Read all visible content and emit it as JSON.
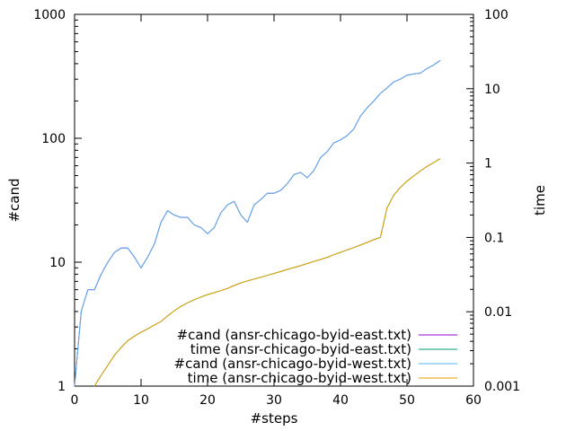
{
  "chart_data": {
    "type": "line",
    "xlabel": "#steps",
    "ylabel": "#cand",
    "y2label": "time",
    "xlim": [
      0,
      60
    ],
    "ylim": [
      1,
      1000
    ],
    "y2lim": [
      0.001,
      100
    ],
    "yscale": "log",
    "y2scale": "log",
    "grid": false,
    "legend_position": "bottom-right",
    "x_ticks": [
      "0",
      "10",
      "20",
      "30",
      "40",
      "50",
      "60"
    ],
    "y_ticks": [
      "1",
      "10",
      "100",
      "1000"
    ],
    "y2_ticks": [
      "0.001",
      "0.01",
      "0.1",
      "1",
      "10",
      "100"
    ],
    "series": [
      {
        "name": "#cand (ansr-chicago-byid-east.txt)",
        "axis": "y",
        "color": "#9400d3",
        "x": [
          0,
          1,
          2,
          3,
          4,
          5,
          6,
          7,
          8,
          9,
          10,
          11,
          12,
          13,
          14,
          15,
          16,
          17,
          18,
          19,
          20,
          21,
          22,
          23,
          24,
          25,
          26,
          27,
          28,
          29,
          30,
          31,
          32,
          33,
          34,
          35,
          36,
          37,
          38,
          39,
          40,
          41,
          42,
          43,
          44,
          45,
          46,
          47,
          48,
          49,
          50,
          51,
          52,
          53,
          54,
          55
        ],
        "values": [
          1,
          4,
          6,
          6,
          8,
          10,
          12,
          13,
          13,
          11,
          9,
          11,
          14,
          21,
          26,
          24,
          23,
          23,
          20,
          19,
          17,
          19,
          25,
          29,
          31,
          24,
          21,
          29,
          32,
          36,
          36,
          38,
          43,
          51,
          53,
          48,
          55,
          70,
          78,
          92,
          97,
          105,
          119,
          151,
          176,
          200,
          230,
          255,
          285,
          300,
          323,
          330,
          335,
          365,
          390,
          425
        ]
      },
      {
        "name": "time (ansr-chicago-byid-east.txt)",
        "axis": "y2",
        "color": "#009e73",
        "x": [
          3,
          4,
          5,
          6,
          7,
          8,
          9,
          10,
          11,
          12,
          13,
          14,
          15,
          16,
          17,
          18,
          19,
          20,
          21,
          22,
          23,
          24,
          25,
          26,
          27,
          28,
          29,
          30,
          31,
          32,
          33,
          34,
          35,
          36,
          37,
          38,
          39,
          40,
          41,
          42,
          43,
          44,
          45,
          46,
          47,
          48,
          49,
          50,
          51,
          52,
          53,
          54,
          55
        ],
        "values": [
          0.001,
          0.0014,
          0.0019,
          0.0026,
          0.0033,
          0.0041,
          0.0047,
          0.0053,
          0.0059,
          0.0066,
          0.0074,
          0.0088,
          0.0103,
          0.0118,
          0.0132,
          0.0145,
          0.0158,
          0.017,
          0.0181,
          0.0192,
          0.0206,
          0.0225,
          0.0244,
          0.026,
          0.0275,
          0.029,
          0.0308,
          0.0328,
          0.0348,
          0.0372,
          0.0393,
          0.0417,
          0.0445,
          0.0475,
          0.0505,
          0.054,
          0.0585,
          0.063,
          0.068,
          0.073,
          0.079,
          0.0855,
          0.093,
          0.1,
          0.25,
          0.37,
          0.47,
          0.57,
          0.67,
          0.78,
          0.9,
          1.01,
          1.15
        ]
      },
      {
        "name": "#cand (ansr-chicago-byid-west.txt)",
        "axis": "y",
        "color": "#56b4e9",
        "x": [
          0,
          1,
          2,
          3,
          4,
          5,
          6,
          7,
          8,
          9,
          10,
          11,
          12,
          13,
          14,
          15,
          16,
          17,
          18,
          19,
          20,
          21,
          22,
          23,
          24,
          25,
          26,
          27,
          28,
          29,
          30,
          31,
          32,
          33,
          34,
          35,
          36,
          37,
          38,
          39,
          40,
          41,
          42,
          43,
          44,
          45,
          46,
          47,
          48,
          49,
          50,
          51,
          52,
          53,
          54,
          55
        ],
        "values": [
          1,
          4,
          6,
          6,
          8,
          10,
          12,
          13,
          13,
          11,
          9,
          11,
          14,
          21,
          26,
          24,
          23,
          23,
          20,
          19,
          17,
          19,
          25,
          29,
          31,
          24,
          21,
          29,
          32,
          36,
          36,
          38,
          43,
          51,
          53,
          48,
          55,
          70,
          78,
          92,
          97,
          105,
          119,
          151,
          176,
          200,
          230,
          255,
          285,
          300,
          323,
          330,
          335,
          365,
          390,
          425
        ]
      },
      {
        "name": "time (ansr-chicago-byid-west.txt)",
        "axis": "y2",
        "color": "#e69f00",
        "x": [
          3,
          4,
          5,
          6,
          7,
          8,
          9,
          10,
          11,
          12,
          13,
          14,
          15,
          16,
          17,
          18,
          19,
          20,
          21,
          22,
          23,
          24,
          25,
          26,
          27,
          28,
          29,
          30,
          31,
          32,
          33,
          34,
          35,
          36,
          37,
          38,
          39,
          40,
          41,
          42,
          43,
          44,
          45,
          46,
          47,
          48,
          49,
          50,
          51,
          52,
          53,
          54,
          55
        ],
        "values": [
          0.001,
          0.0014,
          0.0019,
          0.0026,
          0.0033,
          0.0041,
          0.0047,
          0.0053,
          0.0059,
          0.0066,
          0.0074,
          0.0088,
          0.0103,
          0.0118,
          0.0132,
          0.0145,
          0.0158,
          0.017,
          0.0181,
          0.0192,
          0.0206,
          0.0225,
          0.0244,
          0.026,
          0.0275,
          0.029,
          0.0308,
          0.0328,
          0.0348,
          0.0372,
          0.0393,
          0.0417,
          0.0445,
          0.0475,
          0.0505,
          0.054,
          0.0585,
          0.063,
          0.068,
          0.073,
          0.079,
          0.0855,
          0.093,
          0.1,
          0.25,
          0.37,
          0.47,
          0.57,
          0.67,
          0.78,
          0.9,
          1.01,
          1.15
        ]
      }
    ]
  }
}
